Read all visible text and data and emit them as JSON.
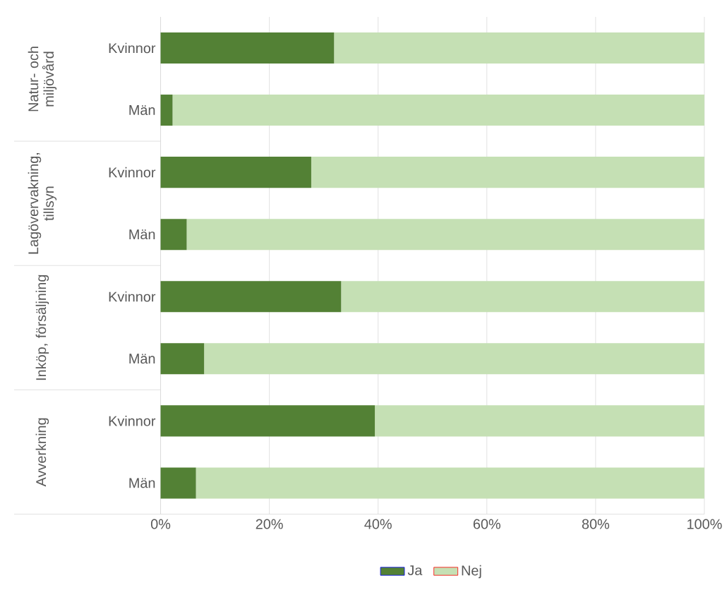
{
  "chart_data": {
    "type": "bar",
    "orientation": "horizontal",
    "stacked": true,
    "categories": [
      "Kvinnor",
      "Män",
      "Kvinnor",
      "Män",
      "Kvinnor",
      "Män",
      "Kvinnor",
      "Män"
    ],
    "series": [
      {
        "name": "Ja",
        "color": "#538135",
        "values": [
          31.9,
          2.2,
          27.7,
          4.8,
          33.2,
          8.0,
          39.4,
          6.5
        ]
      },
      {
        "name": "Nej",
        "color": "#c5e0b4",
        "values": [
          68.1,
          97.8,
          72.3,
          95.2,
          66.8,
          92.0,
          60.6,
          93.5
        ]
      }
    ],
    "xlim": [
      0,
      100
    ],
    "xticks": [
      {
        "value": 0,
        "label": "0%"
      },
      {
        "value": 20,
        "label": "20%"
      },
      {
        "value": 40,
        "label": "40%"
      },
      {
        "value": 60,
        "label": "60%"
      },
      {
        "value": 80,
        "label": "80%"
      },
      {
        "value": 100,
        "label": "100%"
      }
    ],
    "grid": "x",
    "legend": "bottom",
    "annotations": [
      "Natur- och miljövård",
      "Lagövervakning, tillsyn",
      "Inköp, försäljning",
      "Avverkning"
    ]
  }
}
